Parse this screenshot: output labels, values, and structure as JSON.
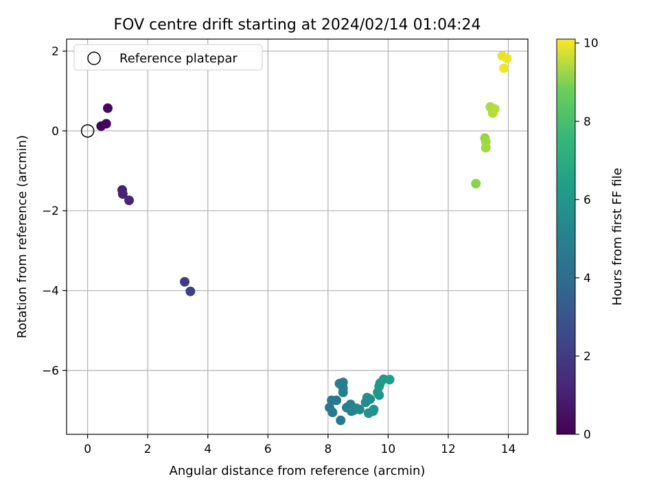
{
  "chart_data": {
    "type": "scatter",
    "title": "FOV centre drift starting at 2024/02/14 01:04:24",
    "xlabel": "Angular distance from reference (arcmin)",
    "ylabel": "Rotation from reference (arcmin)",
    "xlim": [
      -0.7,
      14.65
    ],
    "ylim": [
      -7.6,
      2.3
    ],
    "xticks": [
      0,
      2,
      4,
      6,
      8,
      10,
      12,
      14
    ],
    "yticks": [
      -6,
      -4,
      -2,
      0,
      2
    ],
    "grid": true,
    "legend": {
      "placement": "top-left",
      "entries": [
        {
          "label": "Reference platepar",
          "marker": "open-circle"
        }
      ]
    },
    "reference_point": {
      "x": 0,
      "y": 0
    },
    "colorbar": {
      "label": "Hours from first FF file",
      "colormap": "viridis",
      "range": [
        0,
        10.1
      ],
      "ticks": [
        0,
        2,
        4,
        6,
        8,
        10
      ]
    },
    "points": [
      {
        "x": 0.45,
        "y": 0.12,
        "c": 0.1
      },
      {
        "x": 0.62,
        "y": 0.18,
        "c": 0.2
      },
      {
        "x": 0.67,
        "y": 0.57,
        "c": 0.3
      },
      {
        "x": 1.15,
        "y": -1.48,
        "c": 1.0
      },
      {
        "x": 1.17,
        "y": -1.58,
        "c": 1.05
      },
      {
        "x": 1.38,
        "y": -1.74,
        "c": 1.15
      },
      {
        "x": 3.23,
        "y": -3.78,
        "c": 2.0
      },
      {
        "x": 3.42,
        "y": -4.02,
        "c": 2.1
      },
      {
        "x": 8.05,
        "y": -6.93,
        "c": 4.5
      },
      {
        "x": 8.12,
        "y": -6.75,
        "c": 4.55
      },
      {
        "x": 8.15,
        "y": -7.05,
        "c": 4.6
      },
      {
        "x": 8.28,
        "y": -6.75,
        "c": 4.6
      },
      {
        "x": 8.42,
        "y": -7.25,
        "c": 4.65
      },
      {
        "x": 8.38,
        "y": -6.33,
        "c": 4.8
      },
      {
        "x": 8.5,
        "y": -6.3,
        "c": 4.85
      },
      {
        "x": 8.5,
        "y": -6.55,
        "c": 4.9
      },
      {
        "x": 8.5,
        "y": -6.44,
        "c": 4.9
      },
      {
        "x": 8.62,
        "y": -6.93,
        "c": 5.0
      },
      {
        "x": 8.75,
        "y": -6.85,
        "c": 5.05
      },
      {
        "x": 8.78,
        "y": -7.02,
        "c": 5.1
      },
      {
        "x": 8.85,
        "y": -7.0,
        "c": 5.15
      },
      {
        "x": 8.95,
        "y": -6.95,
        "c": 5.2
      },
      {
        "x": 9.05,
        "y": -6.98,
        "c": 5.3
      },
      {
        "x": 9.25,
        "y": -6.8,
        "c": 5.5
      },
      {
        "x": 9.3,
        "y": -6.68,
        "c": 5.6
      },
      {
        "x": 9.4,
        "y": -6.72,
        "c": 5.65
      },
      {
        "x": 9.35,
        "y": -7.07,
        "c": 5.7
      },
      {
        "x": 9.5,
        "y": -7.02,
        "c": 5.75
      },
      {
        "x": 9.52,
        "y": -6.98,
        "c": 5.8
      },
      {
        "x": 9.65,
        "y": -6.55,
        "c": 5.9
      },
      {
        "x": 9.7,
        "y": -6.62,
        "c": 6.0
      },
      {
        "x": 9.7,
        "y": -6.4,
        "c": 6.05
      },
      {
        "x": 9.73,
        "y": -6.32,
        "c": 6.1
      },
      {
        "x": 9.85,
        "y": -6.22,
        "c": 6.2
      },
      {
        "x": 10.05,
        "y": -6.23,
        "c": 6.3
      },
      {
        "x": 12.92,
        "y": -1.32,
        "c": 9.1
      },
      {
        "x": 13.22,
        "y": -0.18,
        "c": 9.2
      },
      {
        "x": 13.25,
        "y": -0.27,
        "c": 9.25
      },
      {
        "x": 13.25,
        "y": -0.42,
        "c": 9.3
      },
      {
        "x": 13.4,
        "y": 0.6,
        "c": 9.4
      },
      {
        "x": 13.48,
        "y": 0.45,
        "c": 9.45
      },
      {
        "x": 13.55,
        "y": 0.55,
        "c": 9.5
      },
      {
        "x": 13.8,
        "y": 1.88,
        "c": 9.9
      },
      {
        "x": 13.95,
        "y": 1.82,
        "c": 9.95
      },
      {
        "x": 13.85,
        "y": 1.57,
        "c": 10.0
      }
    ]
  }
}
